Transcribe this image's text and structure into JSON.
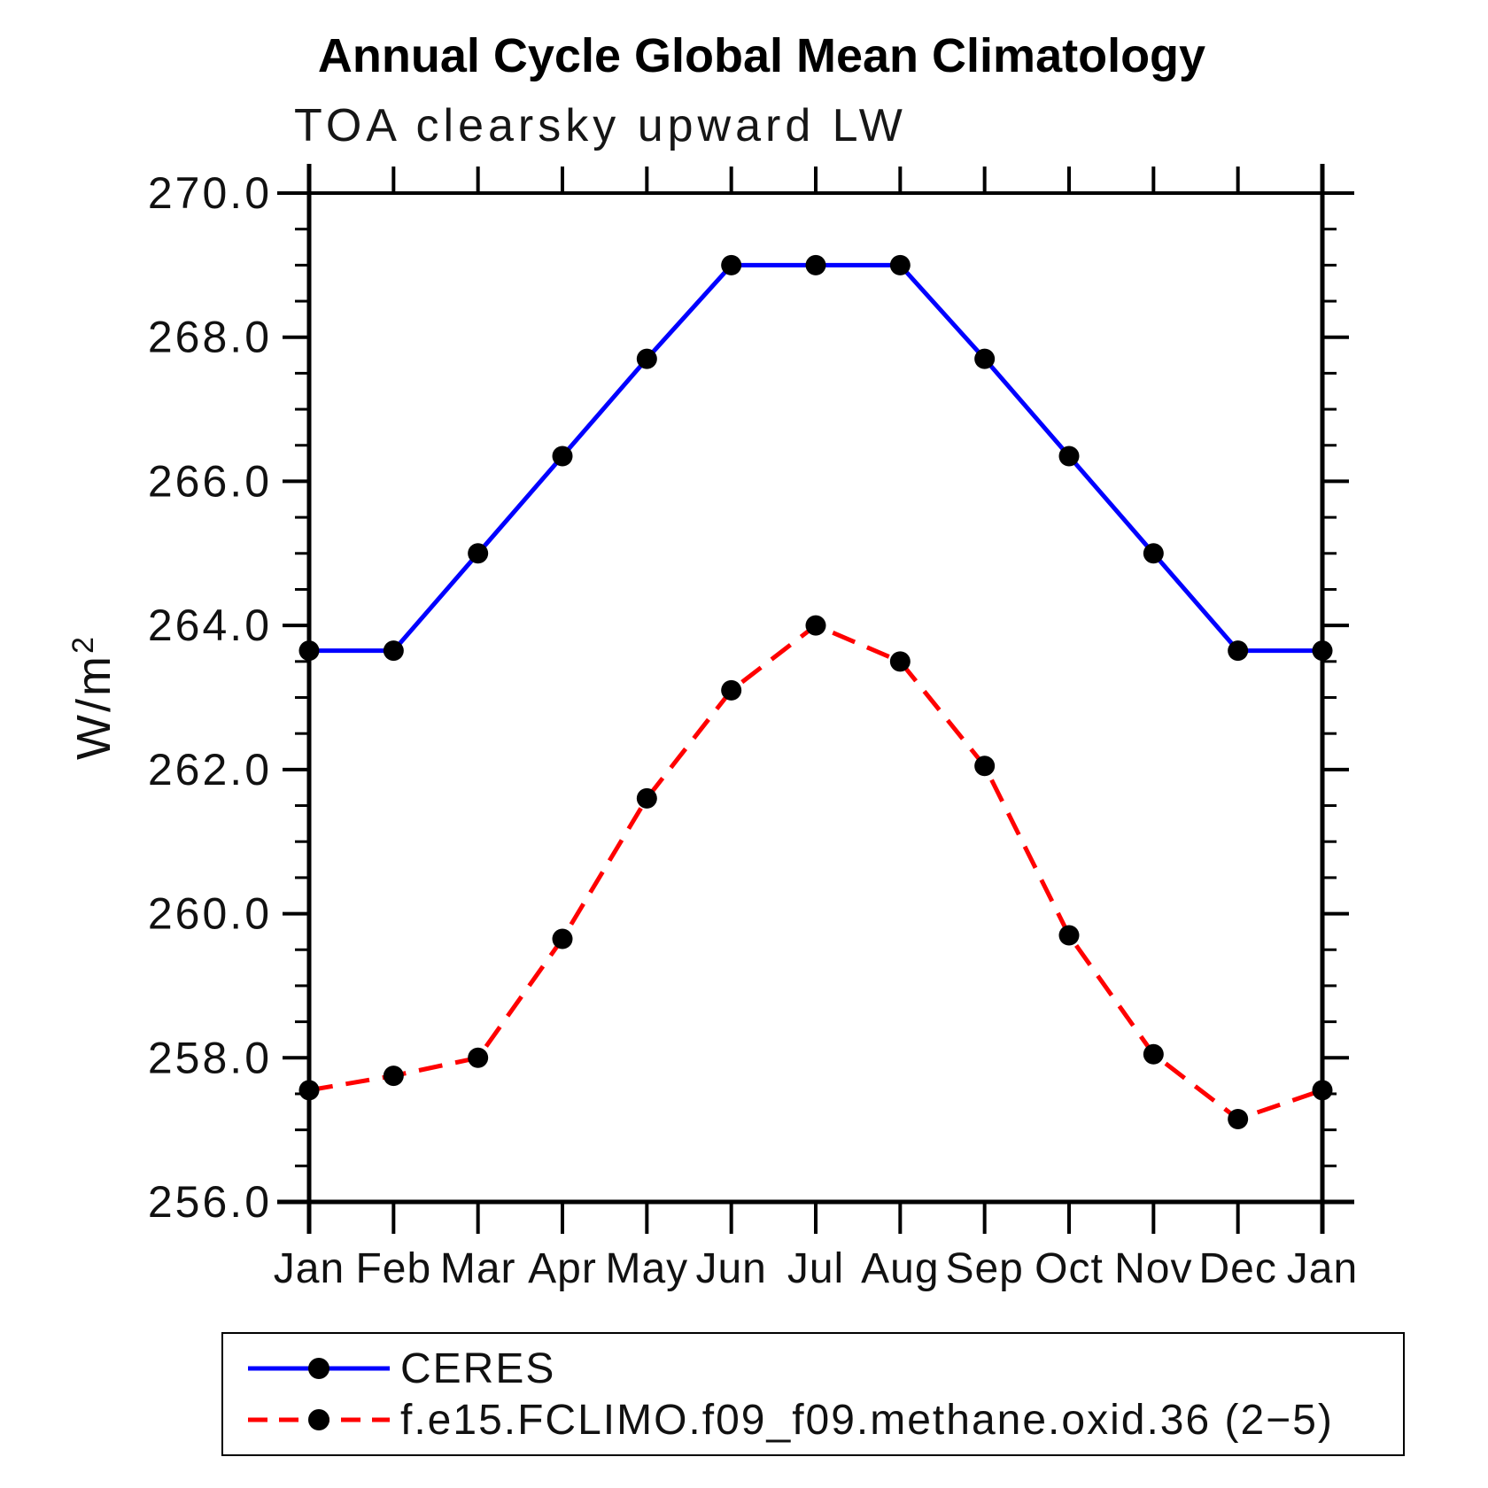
{
  "figure": {
    "background": "#ffffff",
    "text_color": "#000000"
  },
  "chart_data": {
    "type": "line",
    "title": "Annual Cycle Global Mean Climatology",
    "subtitle": "TOA clearsky upward LW",
    "ylabel": "W/m²",
    "ylabel_base": "W/m",
    "ylabel_sup": "2",
    "categories": [
      "Jan",
      "Feb",
      "Mar",
      "Apr",
      "May",
      "Jun",
      "Jul",
      "Aug",
      "Sep",
      "Oct",
      "Nov",
      "Dec",
      "Jan"
    ],
    "ylim": [
      256.0,
      270.0
    ],
    "ytick_major_step": 2.0,
    "ytick_minor_step": 0.5,
    "ytick_labels": [
      "256.0",
      "258.0",
      "260.0",
      "262.0",
      "264.0",
      "266.0",
      "268.0",
      "270.0"
    ],
    "grid": false,
    "legend": {
      "position": "below-left",
      "border": true
    },
    "series": [
      {
        "name": "CERES",
        "color": "#0000ff",
        "line_style": "solid",
        "marker": "filled-circle",
        "marker_color": "#000000",
        "values": [
          263.65,
          263.65,
          265.0,
          266.35,
          267.7,
          269.0,
          269.0,
          269.0,
          267.7,
          266.35,
          265.0,
          263.65,
          263.65
        ]
      },
      {
        "name": "f.e15.FCLIMO.f09_f09.methane.oxid.36 (2−5)",
        "color": "#ff0000",
        "line_style": "dashed",
        "marker": "filled-circle",
        "marker_color": "#000000",
        "values": [
          257.55,
          257.75,
          258.0,
          259.65,
          261.6,
          263.1,
          264.0,
          263.5,
          262.05,
          259.7,
          258.05,
          257.15,
          257.55
        ]
      }
    ]
  }
}
